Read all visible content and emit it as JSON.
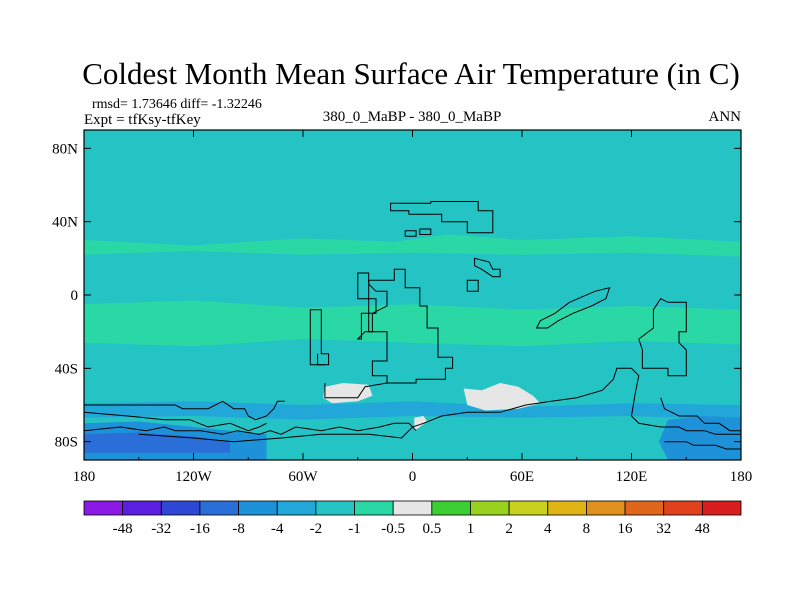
{
  "chart_data": {
    "type": "heatmap",
    "title": "Coldest Month Mean Surface Air Temperature (in C)",
    "subtitle_left_1": "rmsd= 1.73646 diff= -1.32246",
    "subtitle_left_2": "Expt = tfKsy-tfKey",
    "subtitle_center": "380_0_MaBP - 380_0_MaBP",
    "subtitle_right": "ANN",
    "x_range": [
      -180,
      180
    ],
    "y_range": [
      -90,
      90
    ],
    "x_ticks": [
      {
        "value": -180,
        "label": "180"
      },
      {
        "value": -120,
        "label": "120W"
      },
      {
        "value": -60,
        "label": "60W"
      },
      {
        "value": 0,
        "label": "0"
      },
      {
        "value": 60,
        "label": "60E"
      },
      {
        "value": 120,
        "label": "120E"
      },
      {
        "value": 180,
        "label": "180"
      }
    ],
    "y_ticks": [
      {
        "value": 80,
        "label": "80N"
      },
      {
        "value": 40,
        "label": "40N"
      },
      {
        "value": 0,
        "label": "0"
      },
      {
        "value": -40,
        "label": "40S"
      },
      {
        "value": -80,
        "label": "80S"
      }
    ],
    "colorbar": {
      "levels": [
        "-48",
        "-32",
        "-16",
        "-8",
        "-4",
        "-2",
        "-1",
        "-0.5",
        "0.5",
        "1",
        "2",
        "4",
        "8",
        "16",
        "32",
        "48"
      ],
      "colors": [
        "#8a19e6",
        "#5a1fe0",
        "#2f47d6",
        "#2a6fd8",
        "#1e92d8",
        "#22a8d8",
        "#25c4c4",
        "#2ad8a6",
        "#e6e6e6",
        "#3ccd32",
        "#98d21e",
        "#c8d21e",
        "#e0b414",
        "#e0901c",
        "#e0661e",
        "#e0421e",
        "#d81e1e"
      ]
    },
    "field_regions": [
      {
        "name": "background",
        "class": "-2 to -1",
        "color": "#25c4c4"
      },
      {
        "name": "subtropical-band-north",
        "class": "-1 to -0.5",
        "color": "#2ad8a6",
        "lat": [
          22,
          33
        ]
      },
      {
        "name": "subtropical-band-south",
        "class": "-1 to -0.5",
        "color": "#2ad8a6",
        "lat": [
          -28,
          -6
        ]
      },
      {
        "name": "southern-ocean-band",
        "class": "-4 to -2",
        "color": "#22a8d8",
        "lat": [
          -68,
          -58
        ]
      },
      {
        "name": "antarctica-west",
        "class": "-8 to -4",
        "color": "#1e92d8",
        "lat": [
          -90,
          -70
        ],
        "lon": [
          -180,
          -80
        ]
      },
      {
        "name": "antarctica-east",
        "class": "-8 to -4",
        "color": "#1e92d8",
        "lat": [
          -90,
          -68
        ],
        "lon": [
          140,
          180
        ]
      },
      {
        "name": "antarctica-west-core",
        "class": "-16 to -8",
        "color": "#2a6fd8",
        "lat": [
          -86,
          -76
        ],
        "lon": [
          -180,
          -100
        ]
      },
      {
        "name": "south-america-tip-warm",
        "class": "-0.5 to 0.5",
        "color": "#e6e6e6",
        "lat": [
          -58,
          -48
        ],
        "lon": [
          -48,
          -22
        ]
      },
      {
        "name": "africa-south-warm",
        "class": "-0.5 to 0.5",
        "color": "#e6e6e6",
        "lat": [
          -63,
          -48
        ],
        "lon": [
          28,
          70
        ]
      },
      {
        "name": "antarctic-peninsula-warm",
        "class": "-0.5 to 0.5",
        "color": "#e6e6e6",
        "lat": [
          -74,
          -66
        ],
        "lon": [
          0,
          8
        ]
      }
    ]
  }
}
